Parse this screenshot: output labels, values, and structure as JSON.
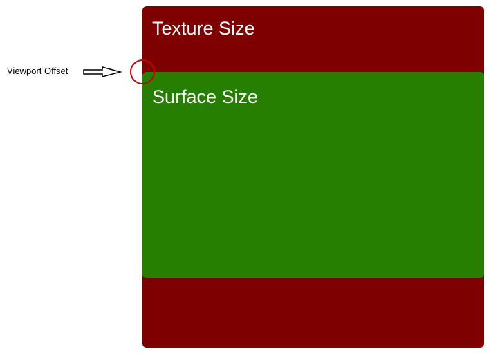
{
  "texture": {
    "label": "Texture Size",
    "color": "#7f0000"
  },
  "surface": {
    "label": "Surface Size",
    "color": "#267f00"
  },
  "annotation": {
    "label": "Viewport Offset",
    "arrow_icon": "right-arrow-icon",
    "marker_icon": "circle-marker-icon",
    "marker_color": "#cc0000"
  }
}
